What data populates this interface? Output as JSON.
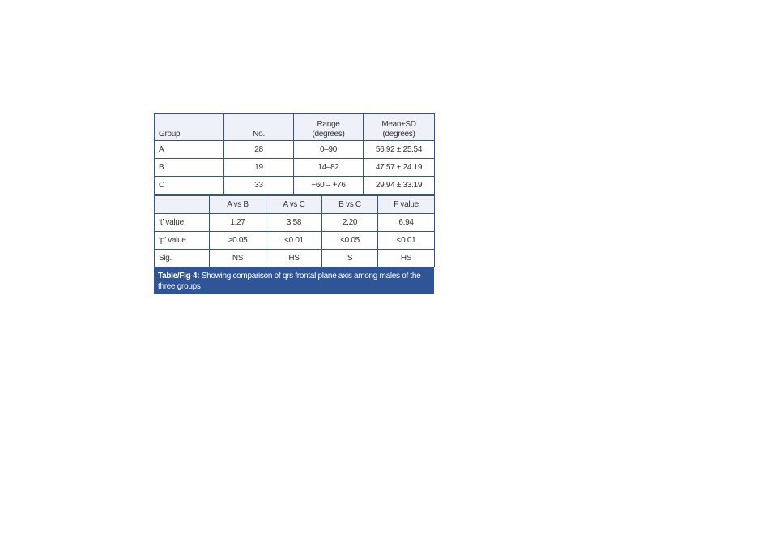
{
  "table1": {
    "header": [
      "Group",
      "No.",
      "Range (degrees)",
      "Mean±SD (degrees)"
    ],
    "rows": [
      [
        "A",
        "28",
        "0–90",
        "56.92 ± 25.54"
      ],
      [
        "B",
        "19",
        "14–82",
        "47.57 ± 24.19"
      ],
      [
        "C",
        "33",
        "−60 – +76",
        "29.94 ± 33.19"
      ]
    ]
  },
  "table2": {
    "header": [
      "",
      "A vs B",
      "A vs C",
      "B vs C",
      "F value"
    ],
    "rows": [
      [
        "‘t’ value",
        "1.27",
        "3.58",
        "2.20",
        "6.94"
      ],
      [
        "‘p’ value",
        ">0.05",
        "<0.01",
        "<0.05",
        "<0.01"
      ],
      [
        "Sig.",
        "NS",
        "HS",
        "S",
        "HS"
      ]
    ]
  },
  "caption": {
    "label": "Table/Fig 4:",
    "text": "Showing comparison of qrs frontal plane axis among males of the three groups"
  }
}
